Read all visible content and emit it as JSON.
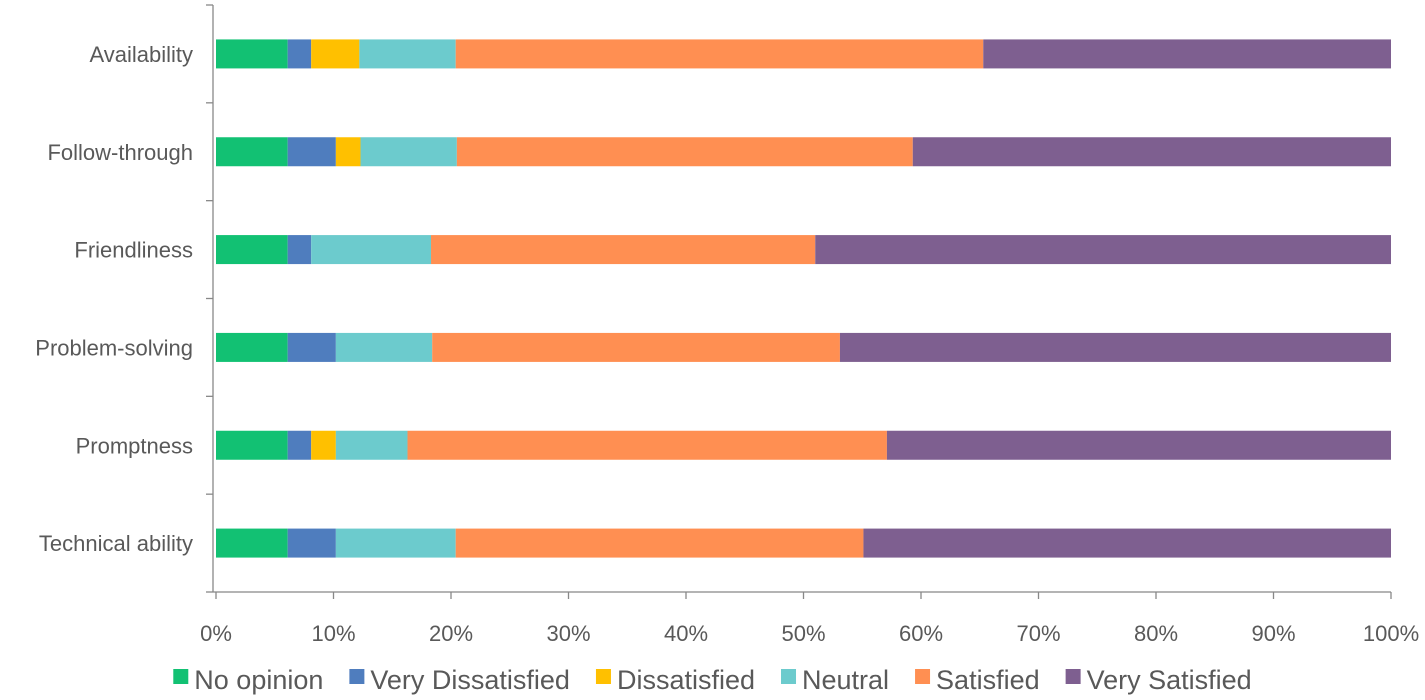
{
  "chart_data": {
    "type": "bar",
    "orientation": "horizontal",
    "stacked": "percent",
    "title": "",
    "xlabel": "",
    "ylabel": "",
    "xlim": [
      0,
      100
    ],
    "x_ticks": [
      "0%",
      "10%",
      "20%",
      "30%",
      "40%",
      "50%",
      "60%",
      "70%",
      "80%",
      "90%",
      "100%"
    ],
    "grid": false,
    "legend_position": "bottom",
    "categories": [
      "Availability",
      "Follow-through",
      "Friendliness",
      "Problem-solving",
      "Promptness",
      "Technical ability"
    ],
    "series": [
      {
        "name": "No opinion",
        "color": "#12C173",
        "values": [
          6.1,
          6.1,
          6.1,
          6.1,
          6.1,
          6.1
        ]
      },
      {
        "name": "Very Dissatisfied",
        "color": "#4F7DBE",
        "values": [
          2.0,
          4.1,
          2.0,
          4.1,
          2.0,
          4.1
        ]
      },
      {
        "name": "Dissatisfied",
        "color": "#FFC000",
        "values": [
          4.1,
          2.1,
          0,
          0,
          2.1,
          0
        ]
      },
      {
        "name": "Neutral",
        "color": "#6CCBCD",
        "values": [
          8.2,
          8.2,
          10.2,
          8.2,
          6.1,
          10.2
        ]
      },
      {
        "name": "Satisfied",
        "color": "#FF8F52",
        "values": [
          44.9,
          38.8,
          32.7,
          34.7,
          40.8,
          34.7
        ]
      },
      {
        "name": "Very Satisfied",
        "color": "#7E5F90",
        "values": [
          34.7,
          40.7,
          49.0,
          46.9,
          42.9,
          44.9
        ]
      }
    ]
  }
}
